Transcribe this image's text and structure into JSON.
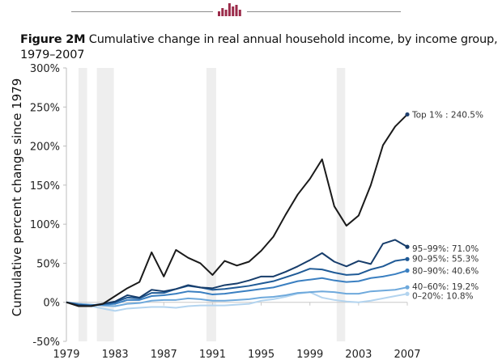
{
  "header": {
    "logo_icon": "epi-bar-logo-icon",
    "logo_color": "#9b2b4a"
  },
  "figure": {
    "label": "Figure 2M",
    "title": "Cumulative change in real annual household income, by income group, 1979–2007"
  },
  "chart_data": {
    "type": "line",
    "title": "Cumulative change in real annual household income, by income group, 1979–2007",
    "xlabel": "",
    "ylabel": "Cumulative percent change since 1979",
    "xlim": [
      1979,
      2007
    ],
    "ylim": [
      -50,
      300
    ],
    "x_ticks": [
      1979,
      1983,
      1987,
      1991,
      1995,
      1999,
      2003,
      2007
    ],
    "x_tick_labels": [
      "1979",
      "1983",
      "1987",
      "1991",
      "1995",
      "1999",
      "2003",
      "2007"
    ],
    "y_ticks": [
      -50,
      0,
      50,
      100,
      150,
      200,
      250,
      300
    ],
    "y_tick_labels": [
      "-50%",
      "0%",
      "50%",
      "100%",
      "150%",
      "200%",
      "250%",
      "300%"
    ],
    "grid": false,
    "recession_shading": [
      [
        1980.0,
        1980.7
      ],
      [
        1981.5,
        1982.9
      ],
      [
        1990.5,
        1991.3
      ],
      [
        2001.2,
        2001.9
      ]
    ],
    "x": [
      1979,
      1980,
      1981,
      1982,
      1983,
      1984,
      1985,
      1986,
      1987,
      1988,
      1989,
      1990,
      1991,
      1992,
      1993,
      1994,
      1995,
      1996,
      1997,
      1998,
      1999,
      2000,
      2001,
      2002,
      2003,
      2004,
      2005,
      2006,
      2007
    ],
    "series": [
      {
        "name": "Top 1%",
        "end_label": "Top 1% : 240.5%",
        "color": "#1a1a1a",
        "marker_color": "#1f3f6e",
        "values": [
          0,
          -5,
          -5,
          -2,
          8,
          18,
          26,
          64,
          33,
          67,
          57,
          50,
          35,
          53,
          47,
          52,
          66,
          84,
          112,
          138,
          158,
          183,
          123,
          98,
          111,
          150,
          201,
          225,
          240.5
        ]
      },
      {
        "name": "95–99%",
        "end_label": "95–99%: 71.0%",
        "color": "#173d6b",
        "marker_color": "#173d6b",
        "values": [
          0,
          -4,
          -5,
          -2,
          1,
          9,
          6,
          16,
          14,
          17,
          22,
          19,
          18,
          22,
          24,
          28,
          33,
          33,
          39,
          46,
          54,
          63,
          52,
          46,
          53,
          49,
          75,
          80,
          71.0
        ]
      },
      {
        "name": "90–95%",
        "end_label": "90–95%: 55.3%",
        "color": "#1f5a96",
        "marker_color": "#1f5a96",
        "values": [
          0,
          -3,
          -4,
          -2,
          0,
          6,
          5,
          12,
          12,
          17,
          21,
          19,
          16,
          17,
          19,
          21,
          24,
          27,
          32,
          37,
          43,
          42,
          38,
          35,
          36,
          42,
          46,
          53,
          55.3
        ]
      },
      {
        "name": "80–90%",
        "end_label": "80–90%: 40.6%",
        "color": "#3a7fc1",
        "marker_color": "#3a7fc1",
        "values": [
          0,
          -3,
          -4,
          -3,
          -2,
          3,
          3,
          8,
          9,
          11,
          14,
          13,
          10,
          11,
          13,
          15,
          17,
          19,
          23,
          27,
          29,
          31,
          28,
          26,
          27,
          31,
          33,
          36,
          40.6
        ]
      },
      {
        "name": "40–60%",
        "end_label": "40–60%: 19.2%",
        "color": "#6ea9dc",
        "marker_color": "#6ea9dc",
        "values": [
          0,
          -2,
          -3,
          -4,
          -5,
          -2,
          -1,
          2,
          3,
          3,
          5,
          4,
          2,
          2,
          3,
          4,
          6,
          7,
          9,
          12,
          13,
          14,
          13,
          11,
          11,
          14,
          15,
          16,
          19.2
        ]
      },
      {
        "name": "0–20%",
        "end_label": "0–20%: 10.8%",
        "color": "#b3d4ef",
        "marker_color": "#b3d4ef",
        "values": [
          0,
          -3,
          -5,
          -8,
          -11,
          -8,
          -7,
          -6,
          -6,
          -7,
          -5,
          -4,
          -4,
          -4,
          -3,
          -2,
          2,
          4,
          7,
          11,
          13,
          6,
          3,
          1,
          0,
          2,
          5,
          8,
          10.8
        ]
      }
    ]
  }
}
